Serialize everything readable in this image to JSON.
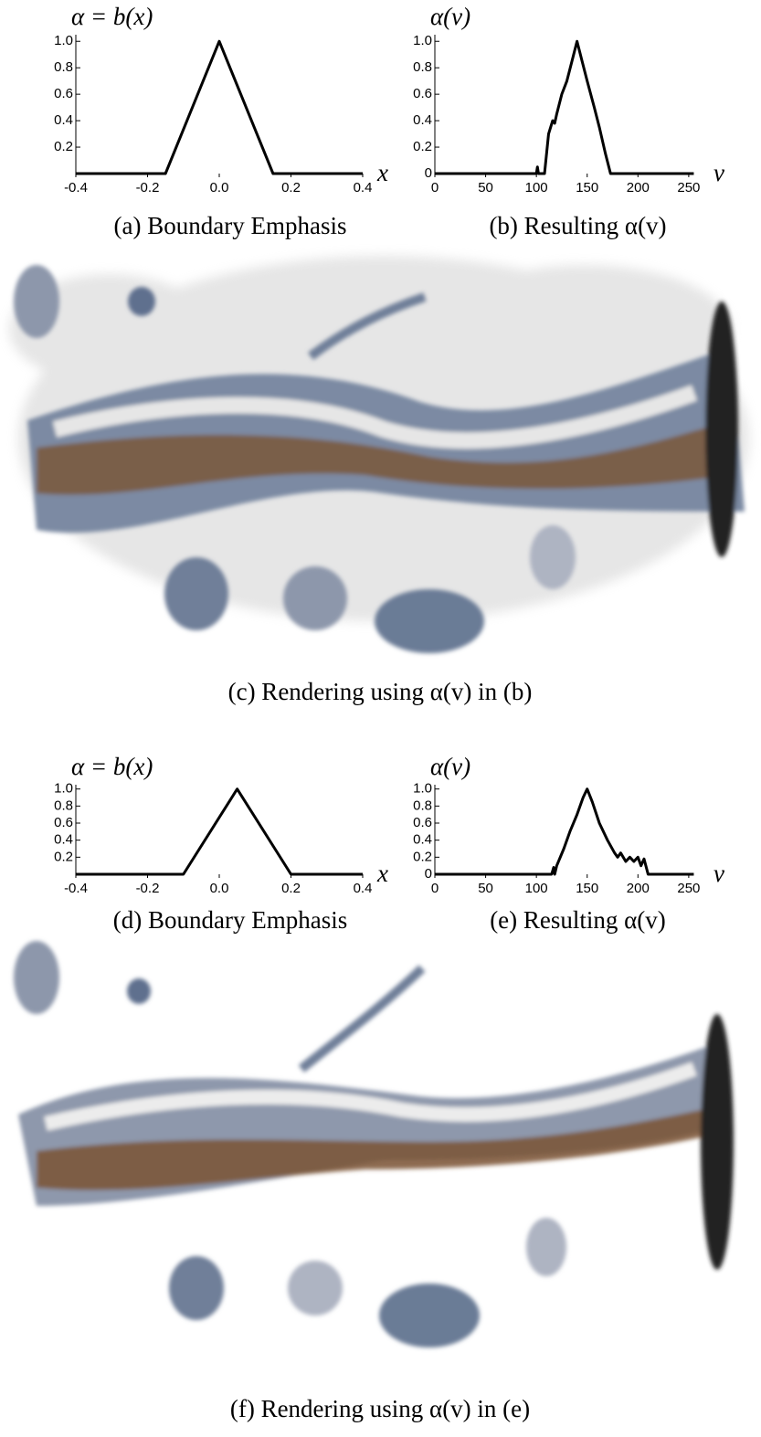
{
  "chart_data": [
    {
      "type": "line",
      "caption": "(a) Boundary Emphasis",
      "y_label": "α = b(x)",
      "x_label": "x",
      "color": "#000000",
      "x": [
        -0.4,
        -0.15,
        0,
        0.15,
        0.4
      ],
      "values": [
        0,
        0,
        1,
        0,
        0
      ],
      "xlim": [
        -0.4,
        0.4
      ],
      "xticks": [
        -0.4,
        -0.2,
        {
          "value": 0,
          "label": "0.0"
        },
        0.2,
        0.4
      ],
      "ylim": [
        0,
        1.05
      ],
      "yticks": [
        0.2,
        0.4,
        0.6,
        0.8,
        {
          "value": 1,
          "label": "1.0"
        }
      ]
    },
    {
      "type": "line",
      "caption": "(b) Resulting α(v)",
      "y_label": "α(v)",
      "x_label": "v",
      "color": "#000000",
      "x": [
        0,
        100,
        101,
        102,
        108,
        112,
        116,
        118,
        120,
        125,
        130,
        135,
        140,
        145,
        150,
        157,
        162,
        168,
        173,
        255
      ],
      "values": [
        0,
        0,
        0.05,
        0,
        0,
        0.3,
        0.4,
        0.38,
        0.45,
        0.6,
        0.7,
        0.85,
        1,
        0.85,
        0.7,
        0.5,
        0.35,
        0.15,
        0,
        0
      ],
      "xlim": [
        0,
        260
      ],
      "xticks": [
        0,
        50,
        100,
        150,
        200,
        250
      ],
      "ylim": [
        0,
        1.05
      ],
      "yticks": [
        0,
        0.2,
        0.4,
        0.6,
        0.8,
        {
          "value": 1,
          "label": "1.0"
        }
      ]
    },
    {
      "type": "line",
      "caption": "(d) Boundary Emphasis",
      "y_label": "α = b(x)",
      "x_label": "x",
      "color": "#000000",
      "x": [
        -0.4,
        -0.1,
        0.05,
        0.2,
        0.4
      ],
      "values": [
        0,
        0,
        1,
        0,
        0
      ],
      "xlim": [
        -0.4,
        0.4
      ],
      "xticks": [
        -0.4,
        -0.2,
        {
          "value": 0,
          "label": "0.0"
        },
        0.2,
        0.4
      ],
      "ylim": [
        0,
        1.05
      ],
      "yticks": [
        0.2,
        0.4,
        0.6,
        0.8,
        {
          "value": 1,
          "label": "1.0"
        }
      ]
    },
    {
      "type": "line",
      "caption": "(e) Resulting α(v)",
      "y_label": "α(v)",
      "x_label": "v",
      "color": "#000000",
      "x": [
        0,
        115,
        117,
        118,
        120,
        127,
        133,
        140,
        146,
        150,
        155,
        162,
        170,
        177,
        180,
        183,
        188,
        192,
        196,
        200,
        203,
        206,
        210,
        255
      ],
      "values": [
        0,
        0,
        0.08,
        0,
        0.1,
        0.3,
        0.5,
        0.7,
        0.9,
        1,
        0.85,
        0.6,
        0.4,
        0.25,
        0.2,
        0.25,
        0.15,
        0.2,
        0.15,
        0.2,
        0.1,
        0.18,
        0,
        0
      ],
      "xlim": [
        0,
        260
      ],
      "xticks": [
        0,
        50,
        100,
        150,
        200,
        250
      ],
      "ylim": [
        0,
        1.05
      ],
      "yticks": [
        0,
        0.2,
        0.4,
        0.6,
        0.8,
        {
          "value": 1,
          "label": "1.0"
        }
      ]
    }
  ],
  "renderings": [
    {
      "caption": "(c) Rendering using α(v) in (b)"
    },
    {
      "caption": "(f) Rendering using α(v) in (e)"
    }
  ]
}
